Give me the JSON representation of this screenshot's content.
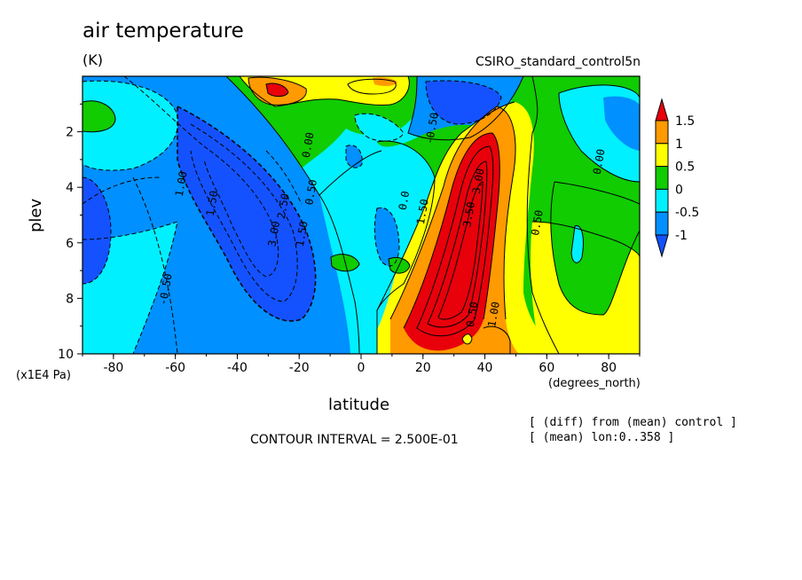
{
  "chart_data": {
    "type": "heatmap",
    "title": "air temperature",
    "units_label": "(K)",
    "subtitle": "CSIRO_standard_control5n",
    "xlabel": "latitude",
    "x_units": "(degrees_north)",
    "ylabel": "plev",
    "y_units": "(x1E4 Pa)",
    "xlim": [
      -90,
      90
    ],
    "ylim": [
      10,
      0
    ],
    "x_ticks": [
      -80,
      -60,
      -40,
      -20,
      0,
      20,
      40,
      60,
      80
    ],
    "y_ticks": [
      2,
      4,
      6,
      8,
      10
    ],
    "contour_interval_text": "CONTOUR INTERVAL = 2.500E-01",
    "notes": [
      "[ (diff) from (mean) control ]",
      "[ (mean) lon:0..358 ]"
    ],
    "colorbar": {
      "levels": [
        "1.5",
        "1",
        "0.5",
        "0",
        "-0.5",
        "-1"
      ],
      "colors": [
        "#e8000b",
        "#ff9a00",
        "#ffff00",
        "#10cc00",
        "#00f0ff",
        "#0090ff",
        "#1452ff"
      ]
    },
    "contour_labels": [
      {
        "text": "1.00",
        "lat": -57,
        "plev": 3.9
      },
      {
        "text": "1.50",
        "lat": -47,
        "plev": 4.6
      },
      {
        "text": "-0.50",
        "lat": -62,
        "plev": 7.7
      },
      {
        "text": "3.00",
        "lat": -27,
        "plev": 5.7
      },
      {
        "text": "2.50",
        "lat": -24,
        "plev": 4.7
      },
      {
        "text": "1.50",
        "lat": -18,
        "plev": 5.7
      },
      {
        "text": "0.50",
        "lat": -15,
        "plev": 4.2
      },
      {
        "text": "0.00",
        "lat": -16,
        "plev": 2.5
      },
      {
        "text": "-0.50",
        "lat": 24,
        "plev": 1.9
      },
      {
        "text": "0.00",
        "lat": 78,
        "plev": 3.1
      },
      {
        "text": "0.50",
        "lat": 58,
        "plev": 5.3
      },
      {
        "text": "1.00",
        "lat": 44,
        "plev": 8.6
      },
      {
        "text": "0.50",
        "lat": 37,
        "plev": 8.6
      },
      {
        "text": "3.50",
        "lat": 36,
        "plev": 5.0
      },
      {
        "text": "3.00",
        "lat": 39,
        "plev": 3.8
      },
      {
        "text": "1.50",
        "lat": 21,
        "plev": 4.9
      },
      {
        "text": "0.0",
        "lat": 15,
        "plev": 4.5
      }
    ]
  }
}
